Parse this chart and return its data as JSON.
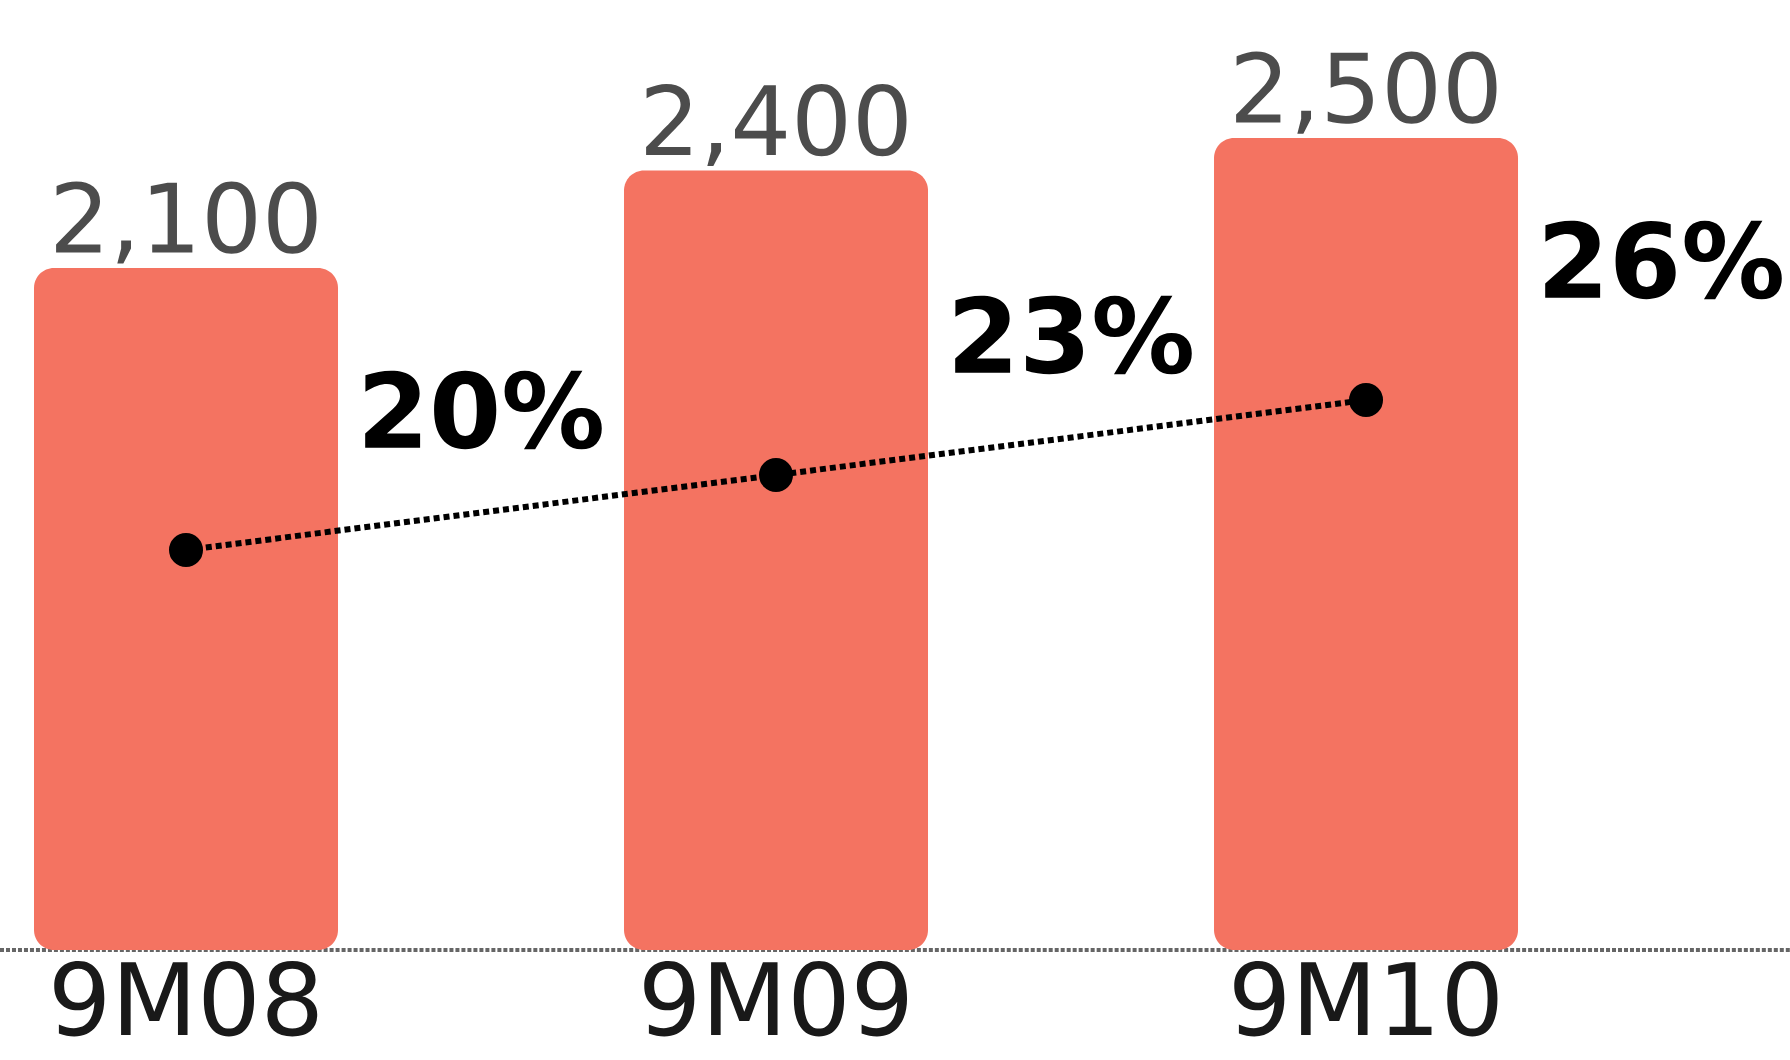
{
  "chart_data": {
    "type": "bar",
    "categories": [
      "9M08",
      "9M09",
      "9M10"
    ],
    "series": [
      {
        "color": "#f47361",
        "values": [
          2100,
          2400,
          2500
        ],
        "value_labels": [
          "2,100",
          "2,400",
          "2,500"
        ]
      },
      {
        "type": "line",
        "axis": "y2",
        "color": "#000000",
        "marker": "circle",
        "line_style": "dotted",
        "values": [
          20,
          23,
          26
        ],
        "value_labels": [
          "20%",
          "23%",
          "26%"
        ]
      }
    ]
  }
}
